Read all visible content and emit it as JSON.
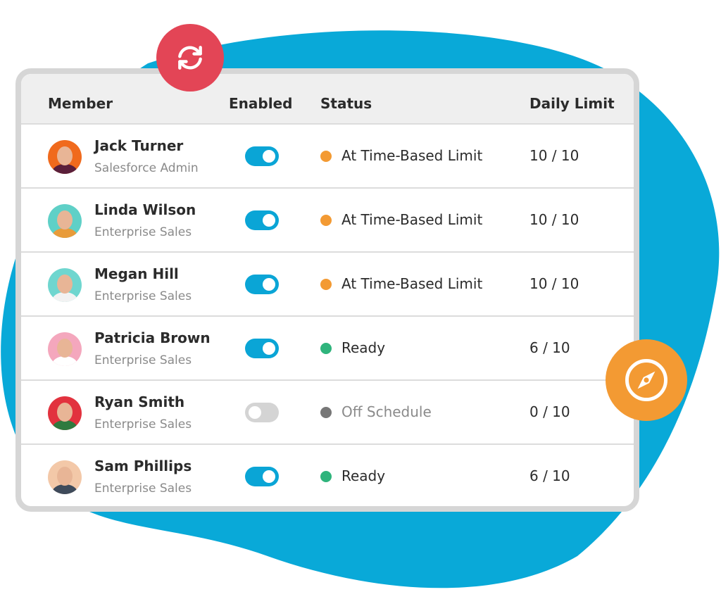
{
  "colors": {
    "blob": "#09a9d8",
    "sync_badge": "#e34556",
    "compass_badge": "#f39a33",
    "toggle_on": "#0aa5d6",
    "toggle_off": "#d4d4d4",
    "limit_status": "#f39a33",
    "ready_status": "#2fb47c",
    "off_status": "#777777"
  },
  "header": {
    "member": "Member",
    "enabled": "Enabled",
    "status": "Status",
    "daily_limit": "Daily Limit"
  },
  "icons": {
    "top_badge": "sync-icon",
    "side_badge": "compass-icon"
  },
  "rows": [
    {
      "name": "Jack Turner",
      "role": "Salesforce Admin",
      "enabled": true,
      "status": "At Time-Based Limit",
      "status_type": "limit",
      "limit": "10 / 10",
      "avatar_bg": "#f06a1d",
      "shirt": "#5a1f3a"
    },
    {
      "name": "Linda Wilson",
      "role": "Enterprise Sales",
      "enabled": true,
      "status": "At Time-Based Limit",
      "status_type": "limit",
      "limit": "10 / 10",
      "avatar_bg": "#5fd0c7",
      "shirt": "#e89b3a"
    },
    {
      "name": "Megan Hill",
      "role": "Enterprise Sales",
      "enabled": true,
      "status": "At Time-Based Limit",
      "status_type": "limit",
      "limit": "10 / 10",
      "avatar_bg": "#6fd6cf",
      "shirt": "#f2f2f2"
    },
    {
      "name": "Patricia Brown",
      "role": "Enterprise Sales",
      "enabled": true,
      "status": "Ready",
      "status_type": "ready",
      "limit": "6 / 10",
      "avatar_bg": "#f4a7bd",
      "shirt": "#ffffff"
    },
    {
      "name": "Ryan Smith",
      "role": "Enterprise Sales",
      "enabled": false,
      "status": "Off Schedule",
      "status_type": "off",
      "limit": "0 / 10",
      "avatar_bg": "#e2323e",
      "shirt": "#2f7a3f"
    },
    {
      "name": "Sam Phillips",
      "role": "Enterprise Sales",
      "enabled": true,
      "status": "Ready",
      "status_type": "ready",
      "limit": "6 / 10",
      "avatar_bg": "#f3c8a8",
      "shirt": "#3e4a5a"
    }
  ]
}
